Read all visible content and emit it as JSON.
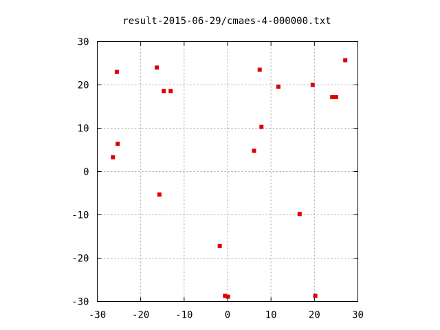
{
  "chart_data": {
    "type": "scatter",
    "title": "result-2015-06-29/cmaes-4-000000.txt",
    "xlim": [
      -30,
      30
    ],
    "ylim": [
      -30,
      30
    ],
    "xticks": [
      -30,
      -20,
      -10,
      0,
      10,
      20,
      30
    ],
    "yticks": [
      -30,
      -20,
      -10,
      0,
      10,
      20,
      30
    ],
    "grid": true,
    "marker_color": "#e00000",
    "points": [
      {
        "x": -26.4,
        "y": 3.3
      },
      {
        "x": -25.3,
        "y": 6.4
      },
      {
        "x": -25.5,
        "y": 23.0
      },
      {
        "x": -16.3,
        "y": 24.0
      },
      {
        "x": -15.7,
        "y": -5.3
      },
      {
        "x": -14.7,
        "y": 18.6
      },
      {
        "x": -13.1,
        "y": 18.6
      },
      {
        "x": -1.8,
        "y": -17.2
      },
      {
        "x": -0.6,
        "y": -28.7
      },
      {
        "x": 0.1,
        "y": -28.9
      },
      {
        "x": 6.1,
        "y": 4.8
      },
      {
        "x": 7.4,
        "y": 23.5
      },
      {
        "x": 7.8,
        "y": 10.3
      },
      {
        "x": 11.7,
        "y": 19.6
      },
      {
        "x": 16.6,
        "y": -9.8
      },
      {
        "x": 19.6,
        "y": 20.0
      },
      {
        "x": 20.2,
        "y": -28.7
      },
      {
        "x": 24.1,
        "y": 17.2
      },
      {
        "x": 25.0,
        "y": 17.2
      },
      {
        "x": 27.1,
        "y": 25.7
      }
    ]
  }
}
